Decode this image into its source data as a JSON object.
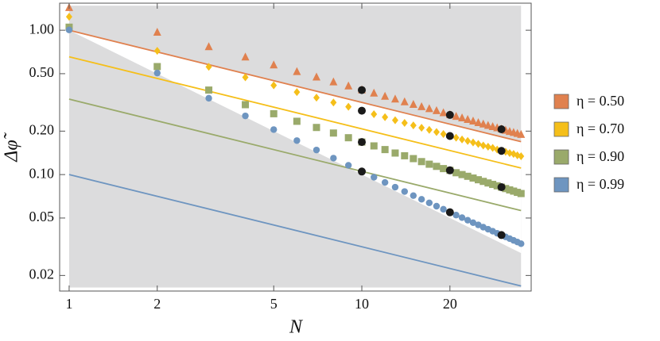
{
  "chart_data": {
    "type": "scatter",
    "xlabel": "N",
    "ylabel": "Δφ̃",
    "xscale": "log",
    "yscale": "log",
    "xlim": [
      0.928,
      37.9
    ],
    "ylim": [
      0.0156,
      1.54
    ],
    "xticks": [
      1,
      2,
      5,
      10,
      20
    ],
    "yticks": [
      {
        "value": 0.02,
        "label": "0.02"
      },
      {
        "value": 0.05,
        "label": "0.05"
      },
      {
        "value": 0.1,
        "label": "0.10"
      },
      {
        "value": 0.2,
        "label": "0.20"
      },
      {
        "value": 0.5,
        "label": "0.50"
      },
      {
        "value": 1,
        "label": "1.00"
      }
    ],
    "shade": {
      "color": "#dcdcdd",
      "x": [
        1,
        35
      ],
      "ylim": [
        0.0165,
        1.48
      ],
      "lower": [
        1,
        0.0286
      ],
      "upper": [
        1,
        0.169
      ]
    },
    "line_x": [
      1,
      35
    ],
    "highlight_x": [
      10,
      20,
      30
    ],
    "highlight_color": "#1a1a1a",
    "x": [
      1,
      2,
      3,
      4,
      5,
      6,
      7,
      8,
      9,
      10,
      11,
      12,
      13,
      14,
      15,
      16,
      17,
      18,
      19,
      20,
      21,
      22,
      23,
      24,
      25,
      26,
      27,
      28,
      29,
      30,
      31,
      32,
      33,
      34,
      35
    ],
    "series": [
      {
        "name": "η = 0.50",
        "color": "#e0814f",
        "marker": "triangle",
        "line_values": [
          1,
          0.169
        ],
        "values": [
          1.43,
          0.964,
          0.765,
          0.649,
          0.572,
          0.515,
          0.472,
          0.437,
          0.409,
          0.385,
          0.365,
          0.347,
          0.332,
          0.318,
          0.305,
          0.294,
          0.285,
          0.276,
          0.267,
          0.259,
          0.252,
          0.246,
          0.24,
          0.234,
          0.228,
          0.223,
          0.218,
          0.214,
          0.21,
          0.206,
          0.202,
          0.198,
          0.195,
          0.192,
          0.189
        ]
      },
      {
        "name": "η = 0.70",
        "color": "#f5bf1a",
        "marker": "diamond",
        "line_values": [
          0.655,
          0.111
        ],
        "values": [
          1.24,
          0.72,
          0.558,
          0.472,
          0.415,
          0.373,
          0.341,
          0.316,
          0.295,
          0.277,
          0.262,
          0.25,
          0.238,
          0.228,
          0.219,
          0.211,
          0.204,
          0.197,
          0.191,
          0.185,
          0.18,
          0.175,
          0.171,
          0.167,
          0.163,
          0.159,
          0.156,
          0.153,
          0.149,
          0.146,
          0.144,
          0.141,
          0.139,
          0.136,
          0.134
        ]
      },
      {
        "name": "η = 0.90",
        "color": "#9aaa6b",
        "marker": "square",
        "line_values": [
          0.333,
          0.0563
        ],
        "values": [
          1.05,
          0.56,
          0.385,
          0.305,
          0.264,
          0.234,
          0.212,
          0.194,
          0.18,
          0.168,
          0.158,
          0.149,
          0.141,
          0.135,
          0.129,
          0.123,
          0.118,
          0.114,
          0.11,
          0.107,
          0.103,
          0.1,
          0.0973,
          0.0946,
          0.0921,
          0.0897,
          0.0875,
          0.0855,
          0.0836,
          0.0818,
          0.08,
          0.0783,
          0.0768,
          0.0753,
          0.0739
        ]
      },
      {
        "name": "η = 0.99",
        "color": "#6e95c0",
        "marker": "circle",
        "line_values": [
          0.1,
          0.0169
        ],
        "values": [
          1.005,
          0.505,
          0.338,
          0.255,
          0.205,
          0.172,
          0.148,
          0.13,
          0.116,
          0.105,
          0.0958,
          0.0882,
          0.0818,
          0.0763,
          0.0715,
          0.0674,
          0.0637,
          0.0604,
          0.0575,
          0.0548,
          0.0524,
          0.0503,
          0.0483,
          0.0464,
          0.0448,
          0.0432,
          0.0418,
          0.0405,
          0.0392,
          0.0381,
          0.037,
          0.036,
          0.035,
          0.0341,
          0.0332
        ]
      }
    ]
  }
}
